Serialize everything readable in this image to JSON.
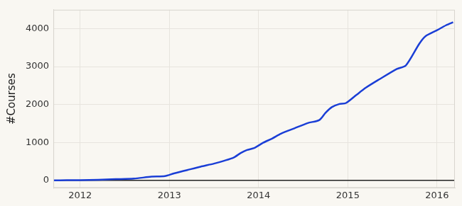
{
  "chart_data": {
    "type": "line",
    "ylabel": "#Courses",
    "x": [
      2011.7,
      2011.85,
      2012.0,
      2012.2,
      2012.4,
      2012.6,
      2012.8,
      2012.95,
      2013.05,
      2013.2,
      2013.35,
      2013.5,
      2013.62,
      2013.72,
      2013.8,
      2013.87,
      2013.95,
      2014.05,
      2014.15,
      2014.25,
      2014.4,
      2014.55,
      2014.68,
      2014.75,
      2014.82,
      2014.9,
      2014.98,
      2015.1,
      2015.2,
      2015.35,
      2015.55,
      2015.65,
      2015.8,
      2015.87,
      2016.0,
      2016.1,
      2016.18
    ],
    "values": [
      0,
      2,
      5,
      15,
      30,
      45,
      95,
      110,
      180,
      270,
      360,
      440,
      520,
      600,
      720,
      800,
      850,
      990,
      1100,
      1230,
      1370,
      1510,
      1590,
      1780,
      1930,
      2010,
      2040,
      2260,
      2440,
      2660,
      2940,
      3030,
      3600,
      3800,
      3960,
      4090,
      4170
    ],
    "color": "#1a3ed6",
    "xlim": [
      2011.7,
      2016.2
    ],
    "xticks": [
      2012,
      2013,
      2014,
      2015,
      2016
    ],
    "ylim": [
      -200,
      4500
    ],
    "yticks": [
      0,
      1000,
      2000,
      3000,
      4000
    ],
    "grid": true
  }
}
